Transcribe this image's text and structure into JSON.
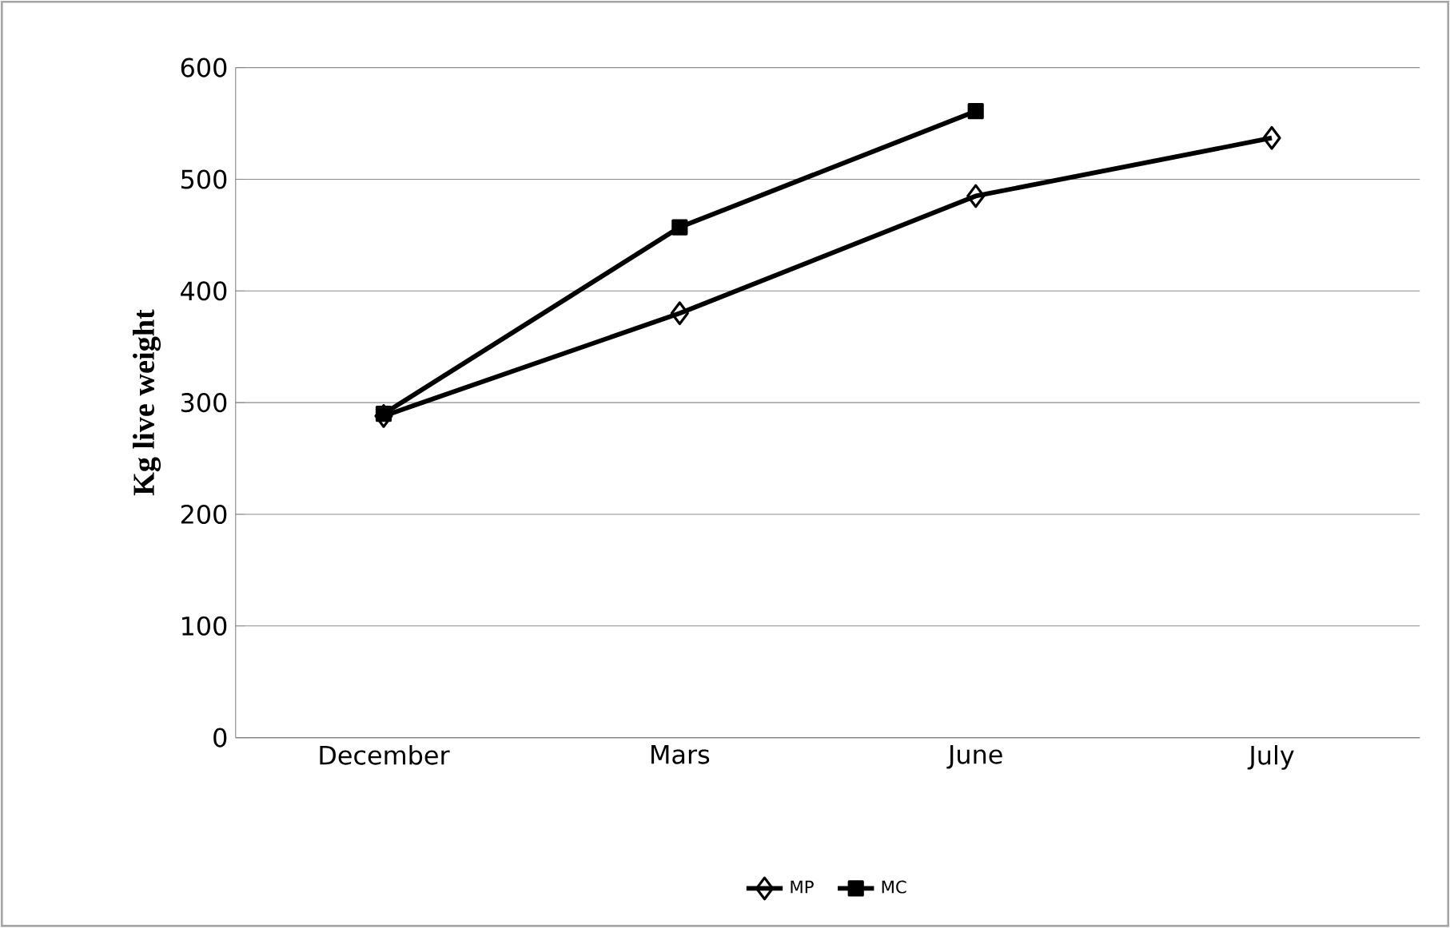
{
  "chart_data": {
    "type": "line",
    "ylabel": "Kg live weight",
    "categories": [
      "December",
      "Mars",
      "June",
      "July"
    ],
    "series": [
      {
        "name": "MP",
        "color": "#000000",
        "marker": "diamond",
        "values": [
          288,
          380,
          485,
          537
        ]
      },
      {
        "name": "MC",
        "color": "#000000",
        "marker": "square",
        "values": [
          290,
          457,
          561,
          null
        ]
      }
    ],
    "ylim": [
      0,
      600
    ],
    "yticks": [
      0,
      100,
      200,
      300,
      400,
      500,
      600
    ],
    "grid": "y",
    "legend": "bottom",
    "line_style": "solid"
  }
}
